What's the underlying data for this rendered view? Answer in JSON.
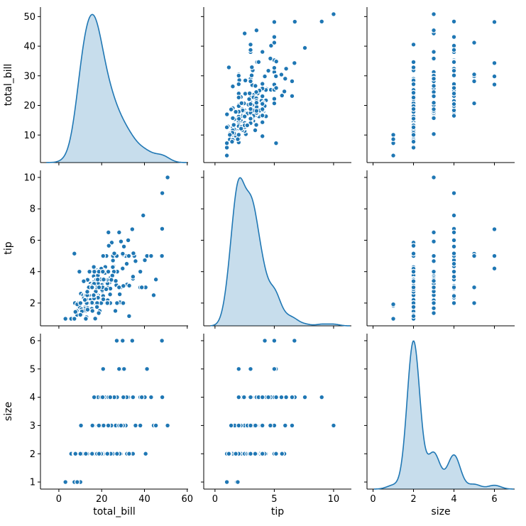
{
  "figure": {
    "background": "#ffffff",
    "kind": "seaborn-pairplot"
  },
  "chart_data": {
    "type": "scatter",
    "subtype": "pairplot-matrix-3x3",
    "diagonal": "kde",
    "grid": "off",
    "legend": "none",
    "marker_color": "#1f77b4",
    "marker_edge_color": "#ffffff",
    "kde_line_color": "#1f77b4",
    "kde_fill_color": "#1f77b4",
    "kde_fill_alpha": 0.25,
    "axis_color": "#000000",
    "text_color": "#000000",
    "variables": [
      {
        "name": "total_bill",
        "label": "total_bill",
        "xlim": [
          -8.6,
          60.4
        ],
        "ylim": [
          0.7,
          53.2
        ],
        "x_ticks": [
          0,
          20,
          40,
          60
        ],
        "y_ticks": [
          10,
          20,
          30,
          40,
          50
        ]
      },
      {
        "name": "tip",
        "label": "tip",
        "xlim": [
          -0.95,
          11.5
        ],
        "ylim": [
          0.55,
          10.45
        ],
        "x_ticks": [
          0,
          5,
          10
        ],
        "y_ticks": [
          2,
          4,
          6,
          8,
          10
        ]
      },
      {
        "name": "size",
        "label": "size",
        "xlim": [
          -0.3,
          7.0
        ],
        "ylim": [
          0.75,
          6.25
        ],
        "x_ticks": [
          0,
          2,
          4,
          6
        ],
        "y_ticks": [
          1,
          2,
          3,
          4,
          5,
          6
        ]
      }
    ],
    "points": {
      "columns": [
        "total_bill",
        "tip",
        "size"
      ],
      "rows": [
        [
          16.99,
          1.01,
          2
        ],
        [
          10.34,
          1.66,
          3
        ],
        [
          21.01,
          3.5,
          3
        ],
        [
          23.68,
          3.31,
          2
        ],
        [
          24.59,
          3.61,
          4
        ],
        [
          25.29,
          4.71,
          4
        ],
        [
          8.77,
          2,
          2
        ],
        [
          26.88,
          3.12,
          4
        ],
        [
          15.04,
          1.96,
          2
        ],
        [
          14.78,
          3.23,
          2
        ],
        [
          10.27,
          1.71,
          2
        ],
        [
          35.26,
          5,
          4
        ],
        [
          15.42,
          1.57,
          2
        ],
        [
          18.43,
          3,
          4
        ],
        [
          14.83,
          3.02,
          2
        ],
        [
          21.58,
          3.92,
          2
        ],
        [
          10.33,
          1.67,
          3
        ],
        [
          16.29,
          3.71,
          3
        ],
        [
          16.97,
          3.5,
          3
        ],
        [
          20.65,
          3.35,
          3
        ],
        [
          17.92,
          4.08,
          2
        ],
        [
          20.29,
          2.75,
          2
        ],
        [
          15.77,
          2.23,
          2
        ],
        [
          39.42,
          7.58,
          4
        ],
        [
          19.82,
          3.18,
          2
        ],
        [
          17.81,
          2.34,
          4
        ],
        [
          13.37,
          2,
          2
        ],
        [
          12.69,
          2,
          2
        ],
        [
          21.7,
          4.3,
          2
        ],
        [
          19.65,
          3,
          2
        ],
        [
          9.55,
          1.45,
          2
        ],
        [
          18.35,
          2.5,
          4
        ],
        [
          15.06,
          3,
          2
        ],
        [
          20.69,
          2.45,
          4
        ],
        [
          17.78,
          3.27,
          2
        ],
        [
          24.06,
          3.6,
          3
        ],
        [
          16.31,
          2,
          3
        ],
        [
          16.93,
          3.07,
          3
        ],
        [
          18.69,
          2.31,
          3
        ],
        [
          31.27,
          5,
          3
        ],
        [
          16.04,
          2.24,
          3
        ],
        [
          17.46,
          2.54,
          2
        ],
        [
          13.94,
          3.06,
          2
        ],
        [
          9.68,
          1.32,
          2
        ],
        [
          30.4,
          5.6,
          4
        ],
        [
          18.29,
          3,
          2
        ],
        [
          22.23,
          5,
          2
        ],
        [
          32.4,
          6,
          4
        ],
        [
          28.55,
          2.05,
          3
        ],
        [
          18.04,
          3,
          2
        ],
        [
          12.54,
          2.5,
          2
        ],
        [
          10.29,
          2.6,
          2
        ],
        [
          34.81,
          5.2,
          4
        ],
        [
          9.94,
          1.56,
          2
        ],
        [
          25.56,
          4.34,
          4
        ],
        [
          19.49,
          3.51,
          2
        ],
        [
          38.01,
          3,
          4
        ],
        [
          26.41,
          1.5,
          2
        ],
        [
          11.24,
          1.76,
          2
        ],
        [
          48.27,
          6.73,
          4
        ],
        [
          20.29,
          3.21,
          2
        ],
        [
          13.81,
          2,
          2
        ],
        [
          11.02,
          1.98,
          2
        ],
        [
          18.29,
          2.34,
          2
        ],
        [
          17.59,
          2.64,
          3
        ],
        [
          20.08,
          3.15,
          3
        ],
        [
          16.45,
          2.47,
          2
        ],
        [
          3.07,
          1,
          1
        ],
        [
          20.23,
          2.01,
          2
        ],
        [
          15.01,
          2.09,
          2
        ],
        [
          12.02,
          1.97,
          2
        ],
        [
          17.07,
          3,
          3
        ],
        [
          26.86,
          3.14,
          2
        ],
        [
          25.28,
          5,
          2
        ],
        [
          14.73,
          2.2,
          2
        ],
        [
          10.51,
          1.25,
          2
        ],
        [
          17.92,
          3.08,
          2
        ],
        [
          27.2,
          4,
          4
        ],
        [
          22.76,
          3,
          2
        ],
        [
          17.29,
          2.71,
          2
        ],
        [
          19.44,
          3,
          2
        ],
        [
          16.66,
          3.4,
          2
        ],
        [
          10.07,
          1.83,
          1
        ],
        [
          32.68,
          5,
          2
        ],
        [
          15.98,
          2.03,
          2
        ],
        [
          34.83,
          5.17,
          4
        ],
        [
          13.03,
          2,
          2
        ],
        [
          18.28,
          4,
          2
        ],
        [
          24.71,
          5.85,
          2
        ],
        [
          21.16,
          3,
          2
        ],
        [
          28.97,
          3,
          2
        ],
        [
          22.49,
          3.5,
          2
        ],
        [
          5.75,
          1,
          2
        ],
        [
          16.32,
          4.3,
          2
        ],
        [
          22.75,
          3.25,
          2
        ],
        [
          40.17,
          4.73,
          4
        ],
        [
          27.28,
          4,
          2
        ],
        [
          12.03,
          1.5,
          2
        ],
        [
          21.01,
          3,
          2
        ],
        [
          12.46,
          1.5,
          2
        ],
        [
          11.35,
          2.5,
          2
        ],
        [
          15.38,
          3,
          2
        ],
        [
          44.3,
          2.5,
          3
        ],
        [
          22.42,
          3.48,
          2
        ],
        [
          20.92,
          4.08,
          2
        ],
        [
          15.36,
          1.64,
          2
        ],
        [
          20.49,
          4.06,
          2
        ],
        [
          25.21,
          4.29,
          2
        ],
        [
          18.24,
          3.76,
          2
        ],
        [
          14.31,
          4,
          2
        ],
        [
          14,
          3,
          2
        ],
        [
          7.25,
          1,
          1
        ],
        [
          38.07,
          4,
          3
        ],
        [
          23.95,
          2.55,
          2
        ],
        [
          25.71,
          4,
          3
        ],
        [
          17.31,
          3.5,
          2
        ],
        [
          29.93,
          5.07,
          4
        ],
        [
          10.65,
          1.5,
          2
        ],
        [
          12.43,
          1.8,
          2
        ],
        [
          24.08,
          2.92,
          4
        ],
        [
          11.69,
          2.31,
          2
        ],
        [
          13.42,
          1.68,
          2
        ],
        [
          14.26,
          2.5,
          2
        ],
        [
          15.95,
          2,
          2
        ],
        [
          12.48,
          2.52,
          2
        ],
        [
          29.8,
          4.2,
          6
        ],
        [
          8.52,
          1.48,
          2
        ],
        [
          14.52,
          2,
          2
        ],
        [
          11.38,
          2,
          2
        ],
        [
          22.82,
          2.18,
          3
        ],
        [
          19.08,
          1.5,
          2
        ],
        [
          20.27,
          2.83,
          2
        ],
        [
          11.17,
          1.5,
          2
        ],
        [
          12.26,
          2,
          2
        ],
        [
          18.26,
          3.25,
          2
        ],
        [
          8.51,
          1.25,
          2
        ],
        [
          10.33,
          2,
          2
        ],
        [
          14.15,
          2,
          2
        ],
        [
          16,
          2,
          2
        ],
        [
          13.16,
          2.75,
          2
        ],
        [
          17.47,
          3.5,
          2
        ],
        [
          34.3,
          6.7,
          6
        ],
        [
          41.19,
          5,
          5
        ],
        [
          27.05,
          5,
          6
        ],
        [
          16.43,
          2.3,
          2
        ],
        [
          8.35,
          1.5,
          2
        ],
        [
          18.64,
          1.36,
          3
        ],
        [
          11.87,
          1.63,
          2
        ],
        [
          9.78,
          1.73,
          2
        ],
        [
          7.51,
          2,
          2
        ],
        [
          14.07,
          2.5,
          2
        ],
        [
          13.13,
          2,
          2
        ],
        [
          17.26,
          2.74,
          3
        ],
        [
          24.55,
          2,
          4
        ],
        [
          19.77,
          2,
          4
        ],
        [
          29.85,
          5.14,
          5
        ],
        [
          48.17,
          5,
          6
        ],
        [
          25,
          3.75,
          4
        ],
        [
          13.39,
          2.61,
          2
        ],
        [
          16.49,
          2,
          4
        ],
        [
          21.5,
          3.5,
          4
        ],
        [
          12.66,
          2.5,
          2
        ],
        [
          16.21,
          2,
          3
        ],
        [
          13.81,
          2,
          2
        ],
        [
          17.51,
          3,
          2
        ],
        [
          24.52,
          3.48,
          3
        ],
        [
          20.76,
          2.24,
          2
        ],
        [
          31.71,
          4.5,
          4
        ],
        [
          10.59,
          1.61,
          2
        ],
        [
          10.63,
          2,
          2
        ],
        [
          50.81,
          10,
          3
        ],
        [
          15.81,
          3.16,
          2
        ],
        [
          7.25,
          5.15,
          2
        ],
        [
          31.85,
          3.18,
          2
        ],
        [
          16.82,
          4,
          2
        ],
        [
          32.9,
          3.11,
          2
        ],
        [
          17.89,
          2,
          2
        ],
        [
          14.48,
          2,
          2
        ],
        [
          9.6,
          4,
          2
        ],
        [
          34.63,
          3.55,
          2
        ],
        [
          34.65,
          3.68,
          4
        ],
        [
          23.33,
          5.65,
          2
        ],
        [
          45.35,
          3.5,
          3
        ],
        [
          23.17,
          6.5,
          4
        ],
        [
          40.55,
          3,
          2
        ],
        [
          20.69,
          5,
          5
        ],
        [
          20.9,
          3.5,
          3
        ],
        [
          30.46,
          2,
          5
        ],
        [
          18.15,
          3.5,
          3
        ],
        [
          23.1,
          4,
          3
        ],
        [
          15.69,
          1.5,
          2
        ],
        [
          19.81,
          4.19,
          2
        ],
        [
          28.44,
          2.56,
          2
        ],
        [
          15.48,
          2.02,
          2
        ],
        [
          16.58,
          4,
          2
        ],
        [
          7.56,
          1.44,
          2
        ],
        [
          10.34,
          2,
          2
        ],
        [
          43.11,
          5,
          4
        ],
        [
          13,
          2,
          2
        ],
        [
          13.51,
          2,
          2
        ],
        [
          18.71,
          4,
          3
        ],
        [
          12.74,
          2.01,
          2
        ],
        [
          13,
          2,
          2
        ],
        [
          16.4,
          2.5,
          2
        ],
        [
          20.53,
          4,
          4
        ],
        [
          16.47,
          3.23,
          3
        ],
        [
          26.59,
          3.41,
          3
        ],
        [
          38.73,
          3,
          4
        ],
        [
          24.27,
          2.03,
          2
        ],
        [
          12.76,
          2.23,
          2
        ],
        [
          30.06,
          2,
          3
        ],
        [
          25.89,
          5.16,
          4
        ],
        [
          48.33,
          9,
          4
        ],
        [
          13.27,
          2.5,
          2
        ],
        [
          28.17,
          6.5,
          3
        ],
        [
          12.9,
          1.1,
          2
        ],
        [
          28.15,
          3,
          5
        ],
        [
          11.59,
          1.5,
          2
        ],
        [
          7.74,
          1.44,
          2
        ],
        [
          30.14,
          3.09,
          4
        ],
        [
          12.16,
          2.2,
          2
        ],
        [
          13.42,
          3.48,
          2
        ],
        [
          8.58,
          1.92,
          1
        ],
        [
          15.98,
          3,
          3
        ],
        [
          13.42,
          1.58,
          2
        ],
        [
          16.27,
          2.5,
          2
        ],
        [
          10.09,
          2,
          2
        ],
        [
          20.45,
          3,
          4
        ],
        [
          13.28,
          2.72,
          2
        ],
        [
          22.12,
          2.88,
          2
        ],
        [
          24.01,
          2,
          4
        ],
        [
          15.69,
          3,
          3
        ],
        [
          11.61,
          3.39,
          2
        ],
        [
          10.77,
          1.47,
          2
        ],
        [
          15.53,
          3,
          2
        ],
        [
          10.07,
          1.25,
          2
        ],
        [
          12.6,
          1,
          2
        ],
        [
          32.83,
          1.17,
          2
        ],
        [
          35.83,
          4.67,
          3
        ],
        [
          29.03,
          5.92,
          3
        ],
        [
          27.18,
          2,
          2
        ],
        [
          22.67,
          2,
          2
        ],
        [
          17.82,
          1.75,
          2
        ],
        [
          18.78,
          3,
          2
        ]
      ]
    }
  }
}
